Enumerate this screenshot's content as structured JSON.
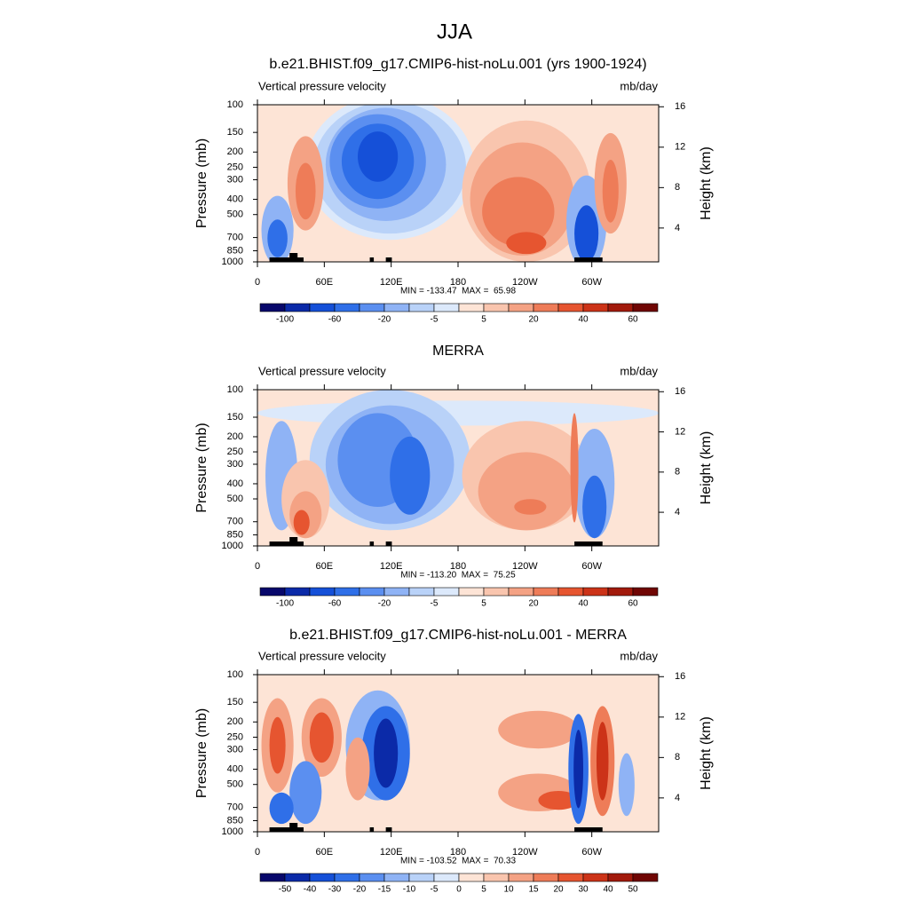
{
  "title": "JJA",
  "chart_data": [
    {
      "type": "contour",
      "title": "b.e21.BHIST.f09_g17.CMIP6-hist-noLu.001 (yrs 1900-1924)",
      "left_label": "Vertical pressure velocity",
      "right_label": "mb/day",
      "ylabel": "Pressure (mb)",
      "y2label": "Height (km)",
      "xlim": [
        0,
        360
      ],
      "xticks": [
        0,
        {
          "value": 60,
          "label": "60E"
        },
        {
          "value": 120,
          "label": "120E"
        },
        180,
        {
          "value": 240,
          "label": "120W"
        },
        {
          "value": 300,
          "label": "60W"
        }
      ],
      "ylim": [
        1000,
        100
      ],
      "ylog": true,
      "yticks": [
        100,
        150,
        200,
        250,
        300,
        400,
        500,
        700,
        850,
        1000
      ],
      "y2lim": [
        0.65,
        16.2
      ],
      "y2ticks": [
        4,
        8,
        12,
        16
      ],
      "stats": "MIN = -133.47  MAX =  65.98",
      "colorbar": {
        "colors": [
          "#08086b",
          "#0b2aa8",
          "#1550d8",
          "#2f6fe8",
          "#5b8ff0",
          "#8fb3f5",
          "#b9d2f8",
          "#dce9fb",
          "#fde4d6",
          "#f9c5ae",
          "#f4a284",
          "#ee7c58",
          "#e65530",
          "#cc3318",
          "#a21a0c",
          "#700604"
        ],
        "ticks": [
          -100,
          -60,
          -20,
          -5,
          5,
          20,
          40,
          60
        ]
      }
    },
    {
      "type": "contour",
      "title": "MERRA",
      "left_label": "Vertical pressure velocity",
      "right_label": "mb/day",
      "ylabel": "Pressure (mb)",
      "y2label": "Height (km)",
      "xlim": [
        0,
        360
      ],
      "xticks": [
        0,
        {
          "value": 60,
          "label": "60E"
        },
        {
          "value": 120,
          "label": "120E"
        },
        180,
        {
          "value": 240,
          "label": "120W"
        },
        {
          "value": 300,
          "label": "60W"
        }
      ],
      "ylim": [
        1000,
        100
      ],
      "ylog": true,
      "yticks": [
        100,
        150,
        200,
        250,
        300,
        400,
        500,
        700,
        850,
        1000
      ],
      "y2lim": [
        0.65,
        16.2
      ],
      "y2ticks": [
        4,
        8,
        12,
        16
      ],
      "stats": "MIN = -113.20  MAX =  75.25",
      "colorbar": {
        "colors": [
          "#08086b",
          "#0b2aa8",
          "#1550d8",
          "#2f6fe8",
          "#5b8ff0",
          "#8fb3f5",
          "#b9d2f8",
          "#dce9fb",
          "#fde4d6",
          "#f9c5ae",
          "#f4a284",
          "#ee7c58",
          "#e65530",
          "#cc3318",
          "#a21a0c",
          "#700604"
        ],
        "ticks": [
          -100,
          -60,
          -20,
          -5,
          5,
          20,
          40,
          60
        ]
      }
    },
    {
      "type": "contour",
      "title": "b.e21.BHIST.f09_g17.CMIP6-hist-noLu.001 - MERRA",
      "left_label": "Vertical pressure velocity",
      "right_label": "mb/day",
      "ylabel": "Pressure (mb)",
      "y2label": "Height (km)",
      "xlim": [
        0,
        360
      ],
      "xticks": [
        0,
        {
          "value": 60,
          "label": "60E"
        },
        {
          "value": 120,
          "label": "120E"
        },
        180,
        {
          "value": 240,
          "label": "120W"
        },
        {
          "value": 300,
          "label": "60W"
        }
      ],
      "ylim": [
        1000,
        100
      ],
      "ylog": true,
      "yticks": [
        100,
        150,
        200,
        250,
        300,
        400,
        500,
        700,
        850,
        1000
      ],
      "y2lim": [
        0.65,
        16.2
      ],
      "y2ticks": [
        4,
        8,
        12,
        16
      ],
      "stats": "MIN = -103.52  MAX =  70.33",
      "colorbar": {
        "colors": [
          "#08086b",
          "#0b2aa8",
          "#1550d8",
          "#2f6fe8",
          "#5b8ff0",
          "#8fb3f5",
          "#b9d2f8",
          "#dce9fb",
          "#fde4d6",
          "#f9c5ae",
          "#f4a284",
          "#ee7c58",
          "#e65530",
          "#cc3318",
          "#a21a0c",
          "#700604"
        ],
        "ticks": [
          -50,
          -40,
          -30,
          -20,
          -15,
          -10,
          -5,
          0,
          5,
          10,
          15,
          20,
          30,
          40,
          50
        ]
      }
    }
  ]
}
